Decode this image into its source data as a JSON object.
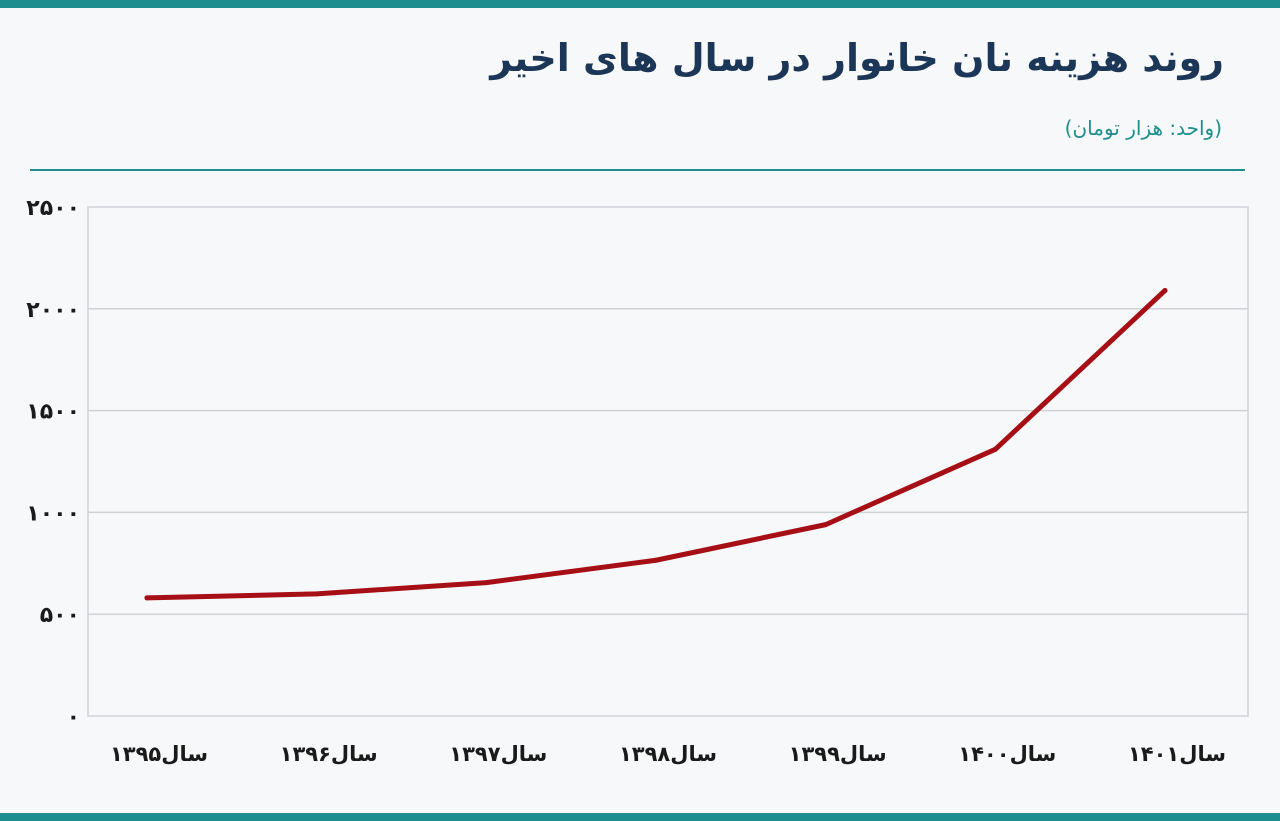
{
  "header": {
    "title": "روند هزینه نان خانوار در سال های اخیر",
    "subtitle": "(واحد: هزار تومان)"
  },
  "colors": {
    "accent": "#1e8f8e",
    "title": "#1c3657",
    "line": "#a50f15",
    "grid": "#cfd3d7"
  },
  "chart_data": {
    "type": "line",
    "title": "روند هزینه نان خانوار در سال های اخیر",
    "subtitle": "(واحد: هزار تومان)",
    "xlabel": "",
    "ylabel": "",
    "categories": [
      "سال۱۳۹۵",
      "سال۱۳۹۶",
      "سال۱۳۹۷",
      "سال۱۳۹۸",
      "سال۱۳۹۹",
      "سال۱۴۰۰",
      "سال۱۴۰۱"
    ],
    "values": [
      580,
      600,
      655,
      765,
      940,
      1310,
      2090
    ],
    "ylim": [
      0,
      2500
    ],
    "yticks": [
      "۰",
      "۵۰۰",
      "۱۰۰۰",
      "۱۵۰۰",
      "۲۰۰۰",
      "۲۵۰۰"
    ],
    "grid": true,
    "legend": "none"
  }
}
